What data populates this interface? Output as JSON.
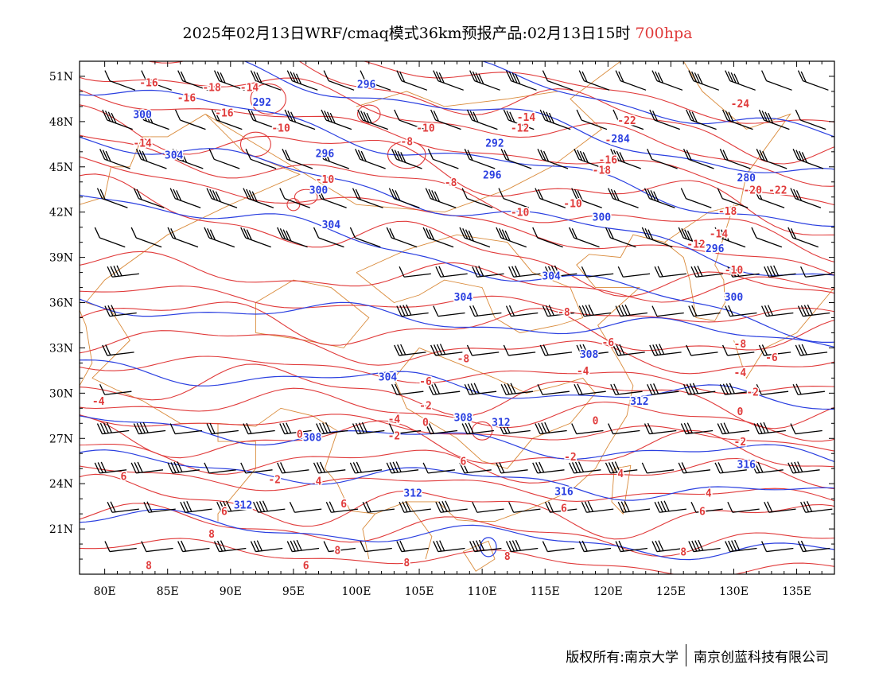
{
  "title": {
    "main": "2025年02月13日WRF/cmaq模式36km预报产品:02月13日15时",
    "level": "700hpa",
    "level_color": "#e03a3a"
  },
  "map": {
    "lon_range": [
      78,
      138
    ],
    "lat_range": [
      18,
      52
    ],
    "x_ticks": [
      "80E",
      "85E",
      "90E",
      "95E",
      "100E",
      "105E",
      "110E",
      "115E",
      "120E",
      "125E",
      "130E",
      "135E"
    ],
    "y_ticks": [
      "51N",
      "48N",
      "45N",
      "42N",
      "39N",
      "36N",
      "33N",
      "30N",
      "27N",
      "24N",
      "21N"
    ],
    "colors": {
      "height_contour": "#2a3fe0",
      "temperature_contour": "#e03a3a",
      "boundaries": "#d98a3a",
      "wind_barb": "#000000"
    },
    "height_labels": [
      {
        "t": "296",
        "lon": 100.8,
        "lat": 50.5
      },
      {
        "t": "292",
        "lon": 92.5,
        "lat": 49.3
      },
      {
        "t": "300",
        "lon": 83,
        "lat": 48.5
      },
      {
        "t": "304",
        "lon": 85.5,
        "lat": 45.8
      },
      {
        "t": "296",
        "lon": 97.5,
        "lat": 45.9
      },
      {
        "t": "292",
        "lon": 111,
        "lat": 46.6
      },
      {
        "t": "296",
        "lon": 110.8,
        "lat": 44.5
      },
      {
        "t": "300",
        "lon": 97,
        "lat": 43.5
      },
      {
        "t": "304",
        "lon": 98,
        "lat": 41.2
      },
      {
        "t": "300",
        "lon": 119.5,
        "lat": 41.7
      },
      {
        "t": "304",
        "lon": 108.5,
        "lat": 36.4
      },
      {
        "t": "304",
        "lon": 115.5,
        "lat": 37.8
      },
      {
        "t": "296",
        "lon": 128.5,
        "lat": 39.6
      },
      {
        "t": "300",
        "lon": 130,
        "lat": 36.4
      },
      {
        "t": "308",
        "lon": 118.5,
        "lat": 32.6
      },
      {
        "t": "304",
        "lon": 102.5,
        "lat": 31.1
      },
      {
        "t": "308",
        "lon": 108.5,
        "lat": 28.4
      },
      {
        "t": "312",
        "lon": 111.5,
        "lat": 28.1
      },
      {
        "t": "312",
        "lon": 122.5,
        "lat": 29.5
      },
      {
        "t": "308",
        "lon": 96.5,
        "lat": 27.1
      },
      {
        "t": "312",
        "lon": 91,
        "lat": 22.6
      },
      {
        "t": "312",
        "lon": 104.5,
        "lat": 23.4
      },
      {
        "t": "316",
        "lon": 116.5,
        "lat": 23.5
      },
      {
        "t": "316",
        "lon": 131,
        "lat": 25.3
      },
      {
        "t": "280",
        "lon": 131,
        "lat": 44.3
      },
      {
        "t": "284",
        "lon": 121,
        "lat": 46.9
      }
    ],
    "temperature_labels": [
      {
        "t": "-16",
        "lon": 83.5,
        "lat": 50.6
      },
      {
        "t": "-18",
        "lon": 88.5,
        "lat": 50.3
      },
      {
        "t": "-16",
        "lon": 86.5,
        "lat": 49.6
      },
      {
        "t": "-14",
        "lon": 91.5,
        "lat": 50.3
      },
      {
        "t": "-16",
        "lon": 89.5,
        "lat": 48.6
      },
      {
        "t": "-14",
        "lon": 83,
        "lat": 46.6
      },
      {
        "t": "-10",
        "lon": 94,
        "lat": 47.6
      },
      {
        "t": "-14",
        "lon": 113.5,
        "lat": 48.3
      },
      {
        "t": "-12",
        "lon": 113,
        "lat": 47.6
      },
      {
        "t": "-10",
        "lon": 105.5,
        "lat": 47.6
      },
      {
        "t": "-8",
        "lon": 104,
        "lat": 46.7
      },
      {
        "t": "-10",
        "lon": 97.5,
        "lat": 44.2
      },
      {
        "t": "-8",
        "lon": 107.5,
        "lat": 44
      },
      {
        "t": "-10",
        "lon": 113,
        "lat": 42
      },
      {
        "t": "-10",
        "lon": 117.2,
        "lat": 42.6
      },
      {
        "t": "-22",
        "lon": 121.5,
        "lat": 48.1
      },
      {
        "t": "-20",
        "lon": 120.5,
        "lat": 46.8
      },
      {
        "t": "-16",
        "lon": 120,
        "lat": 45.5
      },
      {
        "t": "-18",
        "lon": 119.5,
        "lat": 44.8
      },
      {
        "t": "-24",
        "lon": 130.5,
        "lat": 49.2
      },
      {
        "t": "-20",
        "lon": 131.5,
        "lat": 43.5
      },
      {
        "t": "-22",
        "lon": 133.5,
        "lat": 43.5
      },
      {
        "t": "-18",
        "lon": 129.5,
        "lat": 42.1
      },
      {
        "t": "-14",
        "lon": 128.8,
        "lat": 40.6
      },
      {
        "t": "-12",
        "lon": 127,
        "lat": 39.9
      },
      {
        "t": "-10",
        "lon": 130,
        "lat": 38.2
      },
      {
        "t": "-8",
        "lon": 116.5,
        "lat": 35.4
      },
      {
        "t": "-6",
        "lon": 120,
        "lat": 33.4
      },
      {
        "t": "-8",
        "lon": 130.5,
        "lat": 33.3
      },
      {
        "t": "-6",
        "lon": 133,
        "lat": 32.4
      },
      {
        "t": "-8",
        "lon": 108.5,
        "lat": 32.3
      },
      {
        "t": "-6",
        "lon": 105.5,
        "lat": 30.8
      },
      {
        "t": "-4",
        "lon": 118,
        "lat": 31.5
      },
      {
        "t": "-4",
        "lon": 130.5,
        "lat": 31.4
      },
      {
        "t": "-2",
        "lon": 105.5,
        "lat": 29.2
      },
      {
        "t": "-4",
        "lon": 103,
        "lat": 28.3
      },
      {
        "t": "0",
        "lon": 105.5,
        "lat": 28.1
      },
      {
        "t": "-2",
        "lon": 103,
        "lat": 27.2
      },
      {
        "t": "0",
        "lon": 119,
        "lat": 28.2
      },
      {
        "t": "-2",
        "lon": 131.5,
        "lat": 30.1
      },
      {
        "t": "0",
        "lon": 130.5,
        "lat": 28.8
      },
      {
        "t": "-2",
        "lon": 130.5,
        "lat": 26.8
      },
      {
        "t": "-2",
        "lon": 117,
        "lat": 25.8
      },
      {
        "t": "0",
        "lon": 95.5,
        "lat": 27.3
      },
      {
        "t": "-2",
        "lon": 93.5,
        "lat": 24.3
      },
      {
        "t": "4",
        "lon": 97,
        "lat": 24.2
      },
      {
        "t": "-4",
        "lon": 79.5,
        "lat": 29.5
      },
      {
        "t": "6",
        "lon": 81.5,
        "lat": 24.5
      },
      {
        "t": "6",
        "lon": 108.5,
        "lat": 25.5
      },
      {
        "t": "6",
        "lon": 99,
        "lat": 22.7
      },
      {
        "t": "4",
        "lon": 121,
        "lat": 24.7
      },
      {
        "t": "4",
        "lon": 128,
        "lat": 23.4
      },
      {
        "t": "6",
        "lon": 116.5,
        "lat": 22.4
      },
      {
        "t": "6",
        "lon": 127.5,
        "lat": 22.2
      },
      {
        "t": "6",
        "lon": 89.5,
        "lat": 22.2
      },
      {
        "t": "8",
        "lon": 88.5,
        "lat": 20.7
      },
      {
        "t": "8",
        "lon": 98.5,
        "lat": 19.6
      },
      {
        "t": "8",
        "lon": 104,
        "lat": 18.8
      },
      {
        "t": "8",
        "lon": 112,
        "lat": 19.2
      },
      {
        "t": "8",
        "lon": 126,
        "lat": 19.5
      },
      {
        "t": "8",
        "lon": 83.5,
        "lat": 18.6
      },
      {
        "t": "6",
        "lon": 96,
        "lat": 18.6
      }
    ]
  },
  "footer": {
    "copyright": "版权所有:南京大学",
    "company": "南京创蓝科技有限公司"
  }
}
